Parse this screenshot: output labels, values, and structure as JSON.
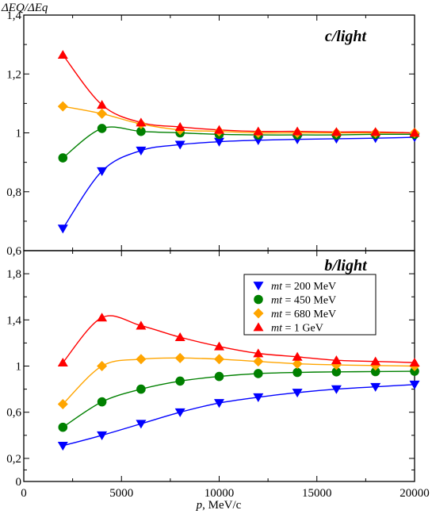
{
  "figure": {
    "y_label": "ΔEQ/ΔEq",
    "x_label_var": "p",
    "x_label_unit": ", MeV/c",
    "colors": {
      "mt200": "#0000ff",
      "mt450": "#008000",
      "mt680": "#ffa500",
      "mt1000": "#ff0000"
    }
  },
  "chart_data": [
    {
      "type": "scatter",
      "title": "c/light",
      "xlabel": "p, MeV/c",
      "ylabel": "ΔEQ/ΔEq",
      "xlim": [
        0,
        20000
      ],
      "ylim": [
        0.6,
        1.4
      ],
      "grid": false,
      "x_ticks": [
        0,
        5000,
        10000,
        15000,
        20000
      ],
      "y_ticks": [
        {
          "value": 0.6,
          "label": "0,6"
        },
        {
          "value": 0.8,
          "label": "0,8"
        },
        {
          "value": 1.0,
          "label": "1"
        },
        {
          "value": 1.2,
          "label": "1,2"
        },
        {
          "value": 1.4,
          "label": "1,4"
        }
      ],
      "x": [
        2000,
        4000,
        6000,
        8000,
        10000,
        12000,
        14000,
        16000,
        18000,
        20000
      ],
      "series": [
        {
          "name": "mt = 200 MeV",
          "marker": "triangle-down",
          "color": "#0000ff",
          "values": [
            0.675,
            0.87,
            0.94,
            0.96,
            0.97,
            0.975,
            0.978,
            0.98,
            0.982,
            0.985
          ]
        },
        {
          "name": "mt = 450 MeV",
          "marker": "circle",
          "color": "#008000",
          "values": [
            0.915,
            1.015,
            1.005,
            1.0,
            0.995,
            0.993,
            0.993,
            0.993,
            0.995,
            0.995
          ]
        },
        {
          "name": "mt = 680 MeV",
          "marker": "diamond",
          "color": "#ffa500",
          "values": [
            1.09,
            1.065,
            1.03,
            1.01,
            1.005,
            1.0,
            1.0,
            1.0,
            1.0,
            1.0
          ]
        },
        {
          "name": "mt = 1 GeV",
          "marker": "triangle-up",
          "color": "#ff0000",
          "values": [
            1.265,
            1.095,
            1.035,
            1.02,
            1.01,
            1.005,
            1.005,
            1.003,
            1.003,
            1.0
          ]
        }
      ]
    },
    {
      "type": "scatter",
      "title": "b/light",
      "xlabel": "p, MeV/c",
      "ylabel": "",
      "xlim": [
        0,
        20000
      ],
      "ylim": [
        0,
        2.0
      ],
      "grid": false,
      "legend": "top-right",
      "x_ticks": [
        0,
        5000,
        10000,
        15000,
        20000
      ],
      "y_ticks": [
        {
          "value": 0,
          "label": "0"
        },
        {
          "value": 0.2,
          "label": "0,2"
        },
        {
          "value": 0.6,
          "label": "0,6"
        },
        {
          "value": 1.0,
          "label": "1"
        },
        {
          "value": 1.4,
          "label": "1,4"
        },
        {
          "value": 1.8,
          "label": "1,8"
        }
      ],
      "x": [
        2000,
        4000,
        6000,
        8000,
        10000,
        12000,
        14000,
        16000,
        18000,
        20000
      ],
      "series": [
        {
          "name": "mt = 200 MeV",
          "legend_var": "mt",
          "legend_rest": " = 200 MeV",
          "marker": "triangle-down",
          "color": "#0000ff",
          "values": [
            0.31,
            0.4,
            0.5,
            0.6,
            0.68,
            0.73,
            0.77,
            0.8,
            0.82,
            0.84
          ]
        },
        {
          "name": "mt = 450 MeV",
          "legend_var": "mt",
          "legend_rest": " = 450 MeV",
          "marker": "circle",
          "color": "#008000",
          "values": [
            0.47,
            0.69,
            0.8,
            0.87,
            0.91,
            0.935,
            0.945,
            0.95,
            0.952,
            0.955
          ]
        },
        {
          "name": "mt = 680 MeV",
          "legend_var": "mt",
          "legend_rest": " = 680 MeV",
          "marker": "diamond",
          "color": "#ffa500",
          "values": [
            0.67,
            1.0,
            1.06,
            1.07,
            1.06,
            1.04,
            1.02,
            1.01,
            1.005,
            1.0
          ]
        },
        {
          "name": "mt = 1 GeV",
          "legend_var": "mt",
          "legend_rest": " = 1 GeV",
          "marker": "triangle-up",
          "color": "#ff0000",
          "values": [
            1.03,
            1.42,
            1.35,
            1.25,
            1.17,
            1.11,
            1.08,
            1.05,
            1.04,
            1.03
          ]
        }
      ]
    }
  ]
}
